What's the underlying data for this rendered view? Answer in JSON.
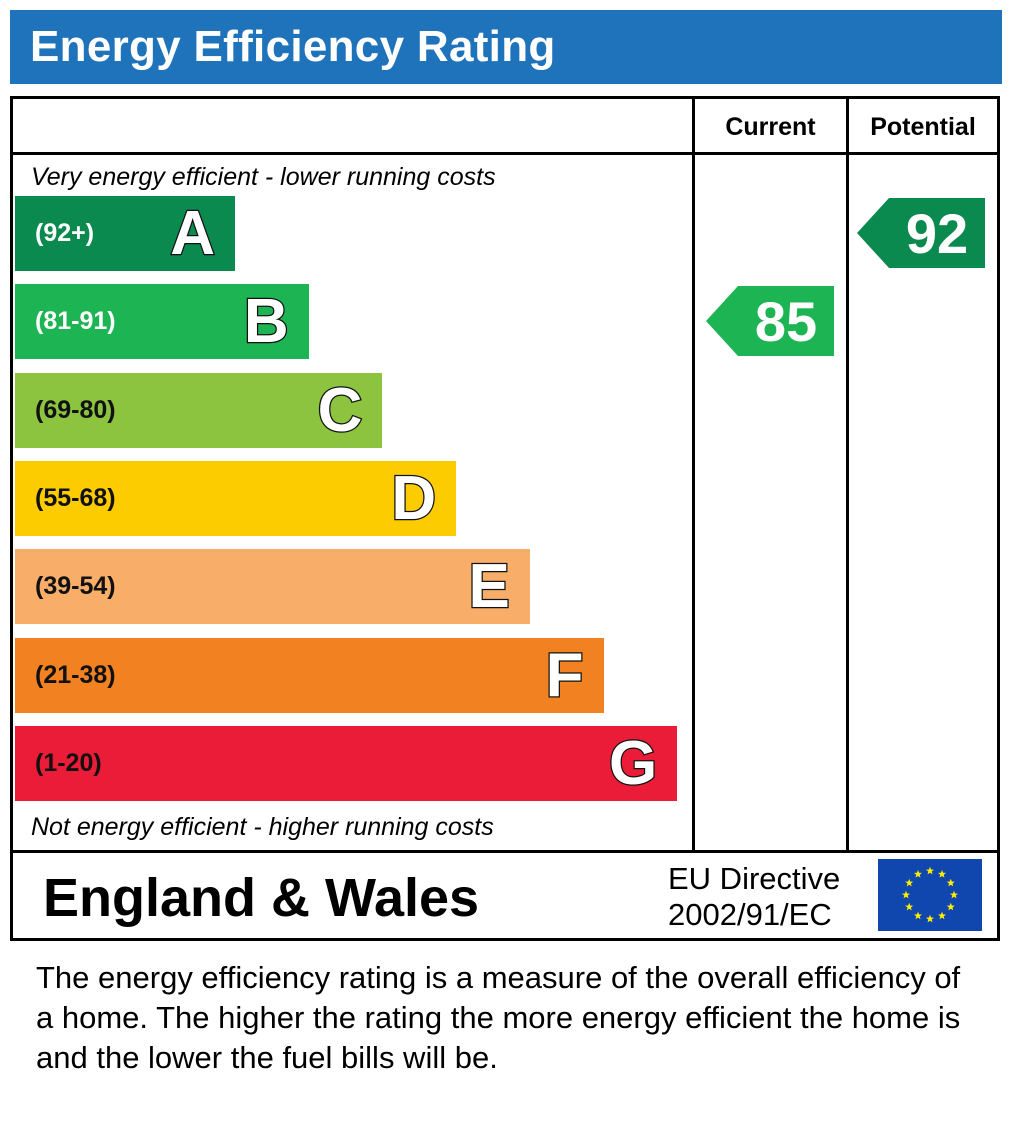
{
  "header": {
    "title": "Energy Efficiency Rating"
  },
  "columns": {
    "current": "Current",
    "potential": "Potential"
  },
  "notes": {
    "top": "Very energy efficient - lower running costs",
    "bottom": "Not energy efficient - higher running costs"
  },
  "chart_data": {
    "type": "bar",
    "bands": [
      {
        "letter": "A",
        "range": "(92+)",
        "color": "#0b8a4f",
        "range_color": "#ffffff"
      },
      {
        "letter": "B",
        "range": "(81-91)",
        "color": "#1db453",
        "range_color": "#ffffff"
      },
      {
        "letter": "C",
        "range": "(69-80)",
        "color": "#8cc43f",
        "range_color": "#111111"
      },
      {
        "letter": "D",
        "range": "(55-68)",
        "color": "#fdcc00",
        "range_color": "#111111"
      },
      {
        "letter": "E",
        "range": "(39-54)",
        "color": "#f8ae68",
        "range_color": "#111111"
      },
      {
        "letter": "F",
        "range": "(21-38)",
        "color": "#f28122",
        "range_color": "#111111"
      },
      {
        "letter": "G",
        "range": "(1-20)",
        "color": "#eb1c38",
        "range_color": "#111111"
      }
    ],
    "current": {
      "value": 85,
      "band": "B",
      "color": "#1db453"
    },
    "potential": {
      "value": 92,
      "band": "A",
      "color": "#0b8a4f"
    }
  },
  "footer": {
    "region": "England & Wales",
    "directive_line1": "EU Directive",
    "directive_line2": "2002/91/EC",
    "flag_icon": "eu-flag-icon",
    "flag_color": "#0f47af",
    "star_color": "#ffed00"
  },
  "description": "The energy efficiency rating is a measure of the overall efficiency of a home.  The higher the rating the more energy efficient the home is and the lower the fuel bills will be."
}
